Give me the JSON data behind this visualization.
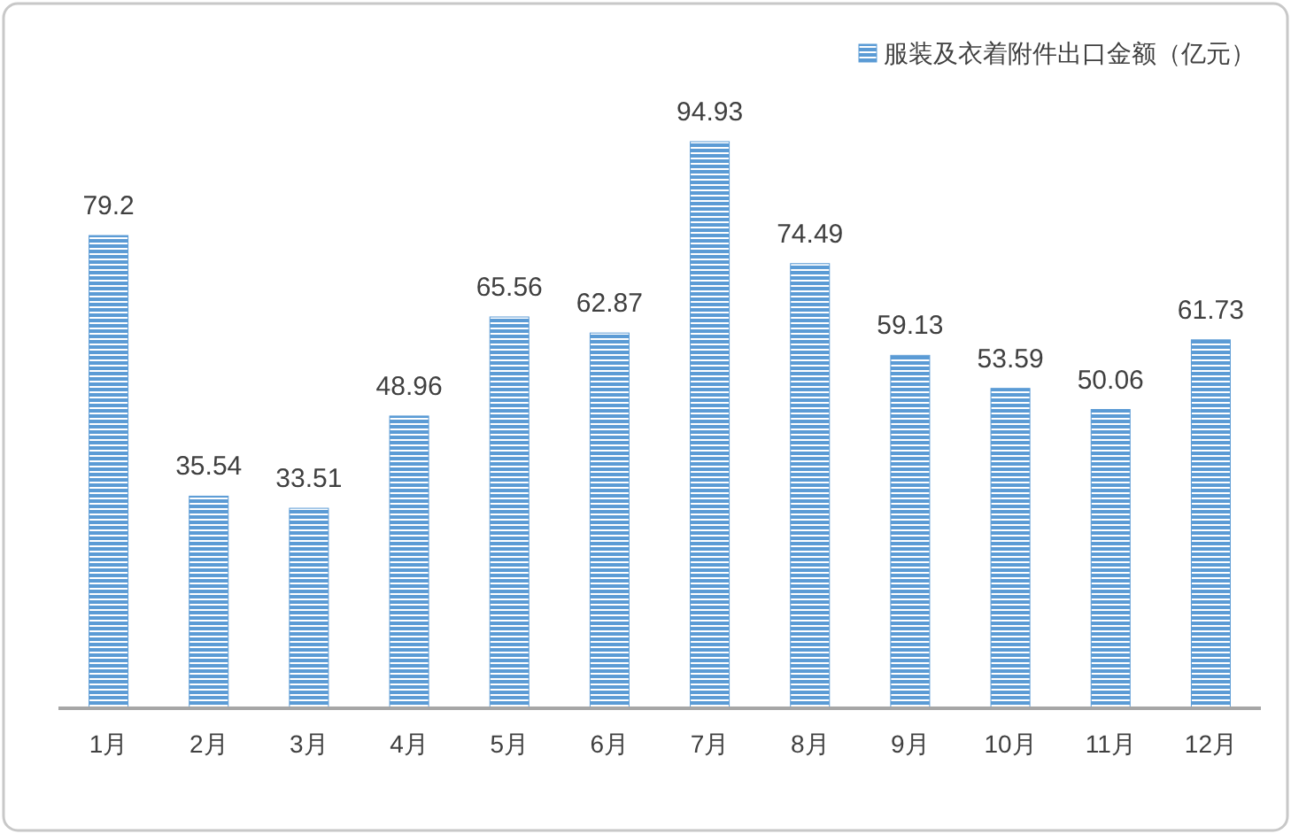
{
  "chart_data": {
    "type": "bar",
    "categories": [
      "1月",
      "2月",
      "3月",
      "4月",
      "5月",
      "6月",
      "7月",
      "8月",
      "9月",
      "10月",
      "11月",
      "12月"
    ],
    "series": [
      {
        "name": "服装及衣着附件出口金额（亿元）",
        "color": "#5b9bd5",
        "values": [
          79.2,
          35.54,
          33.51,
          48.96,
          65.56,
          62.87,
          94.93,
          74.49,
          59.13,
          53.59,
          50.06,
          61.73
        ]
      }
    ],
    "data_labels": true,
    "legend": "top right"
  }
}
